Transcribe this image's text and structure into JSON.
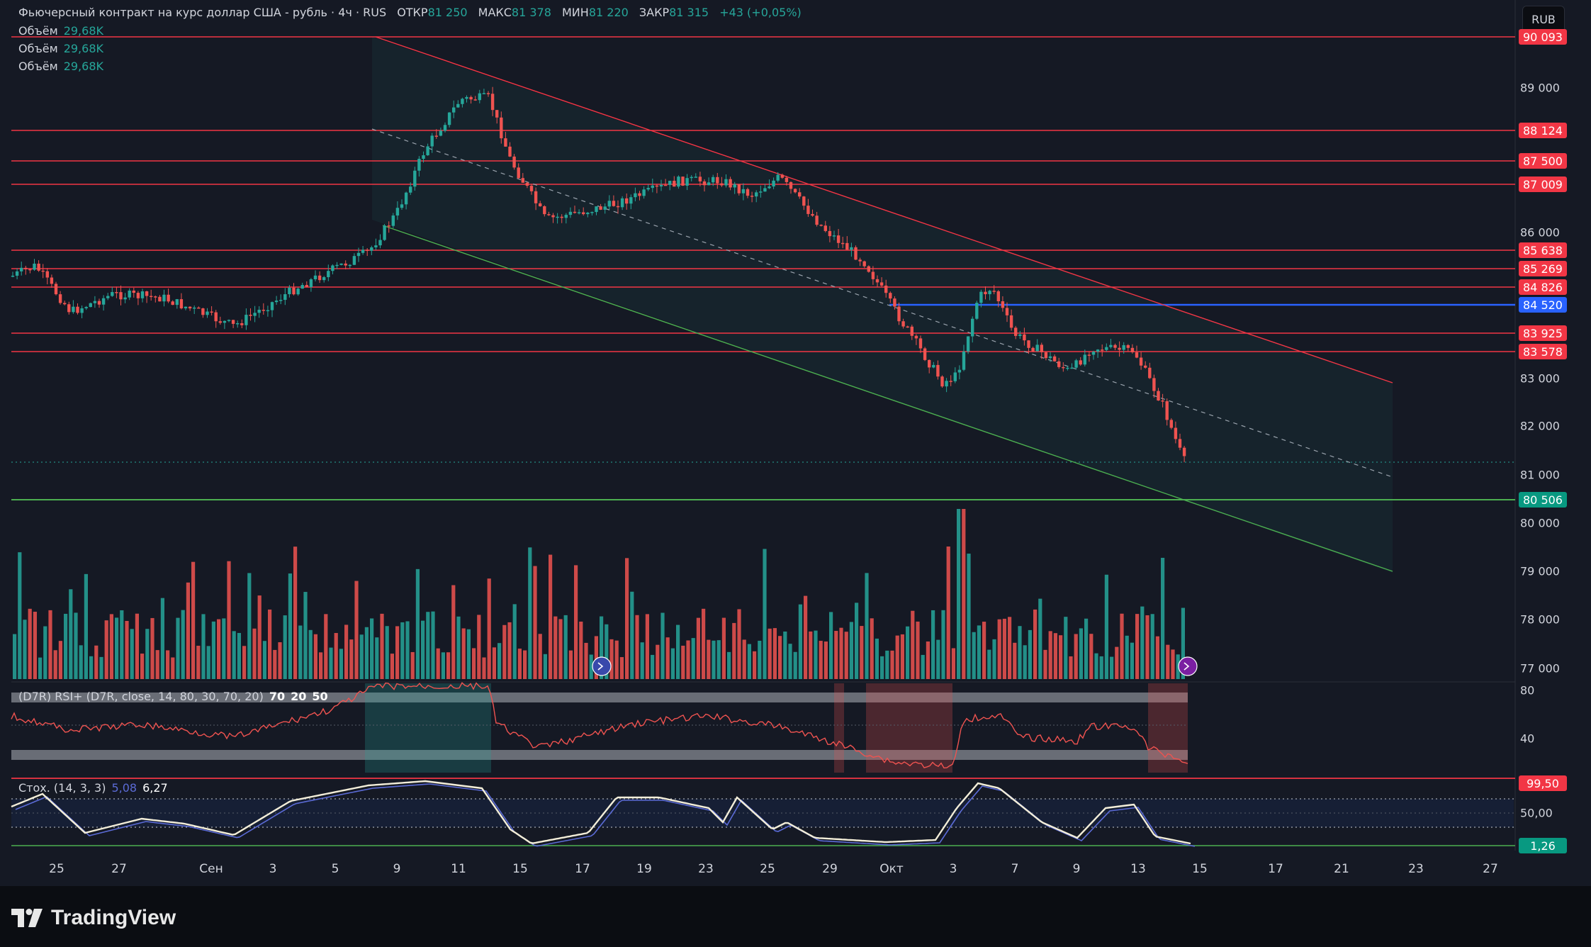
{
  "header": {
    "title": "Фьючерсный контракт на курс доллар США - рубль · 4ч · RUS",
    "open_label": "ОТКР",
    "open_value": "81 250",
    "high_label": "МАКС",
    "high_value": "81 378",
    "low_label": "МИН",
    "low_value": "81 220",
    "close_label": "ЗАКР",
    "close_value": "81 315",
    "change": "+43 (+0,05%)"
  },
  "volume_legend": [
    {
      "label": "Объём",
      "value": "29,68K"
    },
    {
      "label": "Объём",
      "value": "29,68K"
    },
    {
      "label": "Объём",
      "value": "29,68K"
    }
  ],
  "currency_button": "RUB",
  "price_axis": [
    "89 000",
    "86 000",
    "83 000",
    "82 000",
    "81 000",
    "80 000",
    "79 000",
    "78 000",
    "77 000"
  ],
  "level_badges": [
    {
      "text": "90 093",
      "color": "#f23645"
    },
    {
      "text": "88 124",
      "color": "#f23645"
    },
    {
      "text": "87 500",
      "color": "#f23645"
    },
    {
      "text": "87 009",
      "color": "#f23645"
    },
    {
      "text": "85 638",
      "color": "#f23645"
    },
    {
      "text": "85 269",
      "color": "#f23645"
    },
    {
      "text": "84 826",
      "color": "#f23645"
    },
    {
      "text": "84 520",
      "color": "#2962ff"
    },
    {
      "text": "83 925",
      "color": "#f23645"
    },
    {
      "text": "83 578",
      "color": "#f23645"
    },
    {
      "text": "80 506",
      "color": "#089981"
    }
  ],
  "rsi": {
    "legend": "(D7R) RSI+ (D7R, close, 14, 80, 30, 70, 20)",
    "levels": [
      "70",
      "20",
      "50"
    ],
    "axis": [
      "80",
      "40"
    ]
  },
  "stoch": {
    "legend": "Стох. (14, 3, 3)",
    "k_value": "5,08",
    "d_value": "6,27",
    "axis": [
      "50,00"
    ],
    "badges": [
      {
        "text": "99,50",
        "color": "#f23645"
      },
      {
        "text": "1,26",
        "color": "#089981"
      }
    ]
  },
  "time_axis": [
    "25",
    "27",
    "Сен",
    "3",
    "5",
    "9",
    "11",
    "15",
    "17",
    "19",
    "23",
    "25",
    "29",
    "Окт",
    "3",
    "7",
    "9",
    "13",
    "15",
    "17",
    "21",
    "23",
    "27"
  ],
  "brand": "TradingView",
  "colors": {
    "up": "#26a69a",
    "down": "#ef5350",
    "level": "#f23645",
    "support": "#4caf50",
    "blue_level": "#2962ff"
  }
}
